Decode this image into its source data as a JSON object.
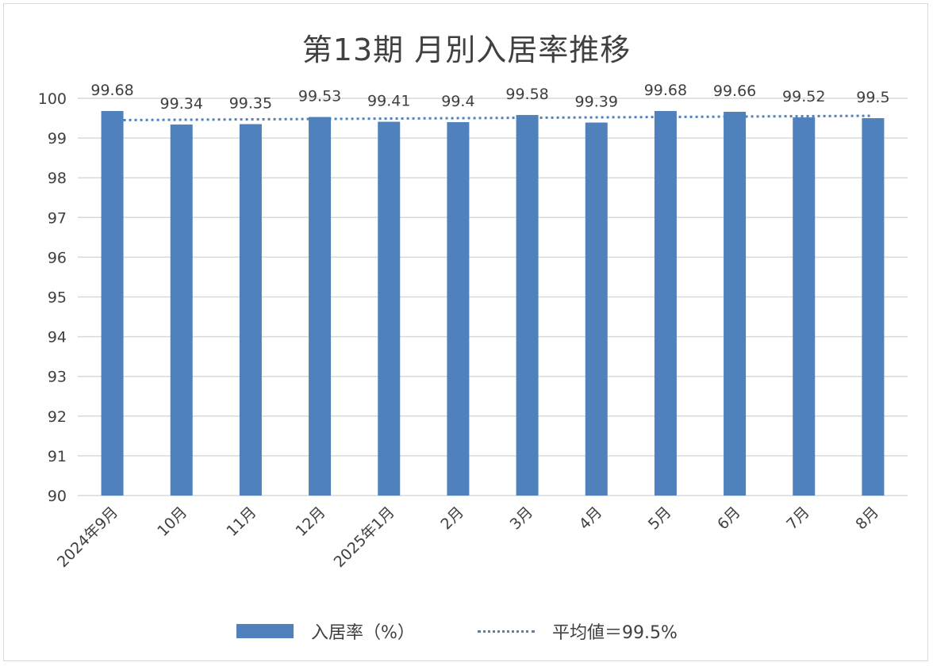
{
  "chart_data": {
    "type": "bar",
    "title": "第13期 月別入居率推移",
    "categories": [
      "2024年9月",
      "10月",
      "11月",
      "12月",
      "2025年1月",
      "2月",
      "3月",
      "4月",
      "5月",
      "6月",
      "7月",
      "8月"
    ],
    "series": [
      {
        "name": "入居率（%）",
        "values": [
          99.68,
          99.34,
          99.35,
          99.53,
          99.41,
          99.4,
          99.58,
          99.39,
          99.68,
          99.66,
          99.52,
          99.5
        ],
        "labels": [
          "99.68",
          "99.34",
          "99.35",
          "99.53",
          "99.41",
          "99.4",
          "99.58",
          "99.39",
          "99.68",
          "99.66",
          "99.52",
          "99.5"
        ],
        "color": "#4f81bd"
      },
      {
        "name": "平均値＝99.5%",
        "type": "trendline",
        "style": "dotted",
        "start": 99.45,
        "end": 99.56,
        "color": "#4f81bd"
      }
    ],
    "ylim": [
      90,
      100
    ],
    "yticks": [
      "90",
      "91",
      "92",
      "93",
      "94",
      "95",
      "96",
      "97",
      "98",
      "99",
      "100"
    ],
    "grid": true,
    "legend": "bottom"
  }
}
